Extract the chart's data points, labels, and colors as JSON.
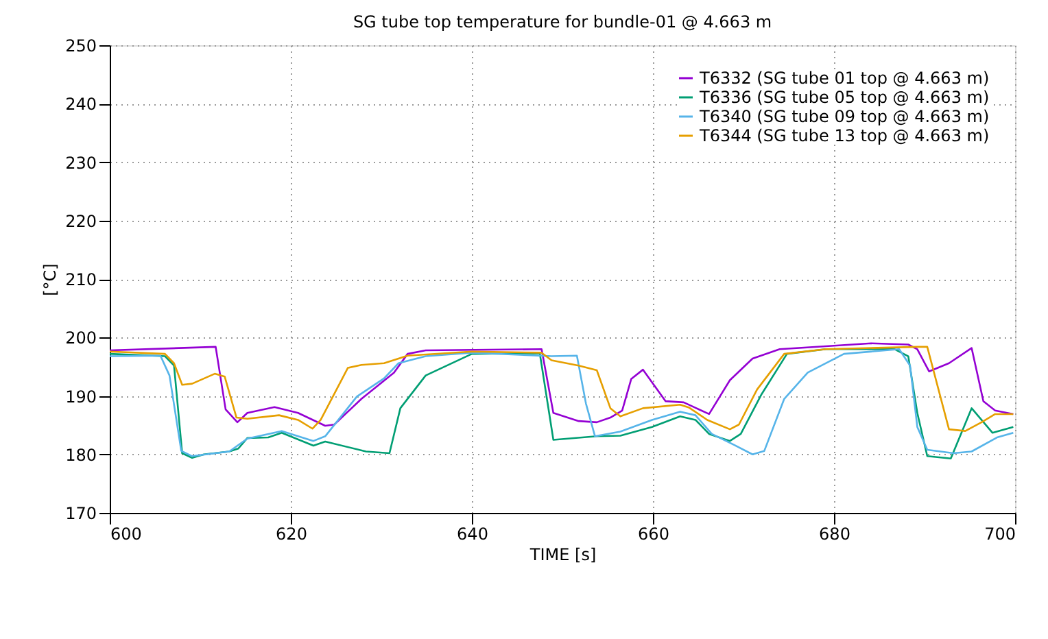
{
  "chart_data": {
    "type": "line",
    "title": "SG tube top temperature for bundle-01 @ 4.663 m",
    "xlabel": "TIME [s]",
    "ylabel": "[°C]",
    "xlim": [
      600,
      700
    ],
    "xticks": [
      600,
      620,
      640,
      660,
      680,
      700
    ],
    "ylim": [
      170,
      250
    ],
    "yticks": [
      170,
      180,
      190,
      200,
      210,
      220,
      230,
      240,
      250
    ],
    "grid": true,
    "legend": "top right",
    "line_style": "solid",
    "series": [
      {
        "name": "T6332 (SG tube 01 top @ 4.663 m)",
        "color": "#9400d3",
        "x": [
          600,
          611.7,
          612.8,
          614.1,
          615.2,
          618.2,
          620.8,
          623.8,
          624.8,
          627.8,
          631.4,
          632.9,
          634.9,
          647.7,
          649.0,
          651.8,
          653.8,
          655.3,
          656.6,
          657.6,
          658.9,
          661.4,
          663.4,
          666.2,
          668.5,
          671.0,
          674.0,
          679.1,
          684.1,
          688.2,
          689.2,
          690.5,
          692.7,
          695.2,
          696.5,
          697.8,
          699.8
        ],
        "values": [
          197.8,
          198.4,
          187.7,
          185.5,
          187.1,
          188.1,
          187.1,
          184.9,
          185.1,
          189.5,
          194,
          197.2,
          197.8,
          198,
          187.1,
          185.7,
          185.5,
          186.3,
          187.5,
          192.9,
          194.5,
          189.1,
          188.9,
          186.9,
          192.7,
          196.4,
          198,
          198.5,
          199,
          198.8,
          198,
          194.2,
          195.6,
          198.2,
          189.1,
          187.5,
          186.9
        ]
      },
      {
        "name": "T6336 (SG tube 05 top @ 4.663 m)",
        "color": "#009e73",
        "x": [
          600,
          606.1,
          607.1,
          608.0,
          609.1,
          610.4,
          613.2,
          614.2,
          615.2,
          617.5,
          619.0,
          622.5,
          623.8,
          628.3,
          630.9,
          632.1,
          634.9,
          640.0,
          647.5,
          649.0,
          653.8,
          656.4,
          659.9,
          663.0,
          664.7,
          666.2,
          668.5,
          669.7,
          672.0,
          674.8,
          679.1,
          686.7,
          688.2,
          689.2,
          690.3,
          692.9,
          695.2,
          697.5,
          699.8
        ],
        "values": [
          197.2,
          196.8,
          195.2,
          180.2,
          179.4,
          180,
          180.5,
          181,
          182.8,
          182.9,
          183.7,
          181.5,
          182.2,
          180.5,
          180.2,
          187.9,
          193.5,
          197.2,
          197.3,
          182.5,
          183.1,
          183.2,
          184.7,
          186.5,
          185.9,
          183.5,
          182.3,
          183.5,
          190.3,
          197.2,
          198,
          198,
          196.8,
          187.1,
          179.7,
          179.3,
          187.9,
          183.7,
          184.7
        ]
      },
      {
        "name": "T6340 (SG tube 09 top @ 4.663 m)",
        "color": "#56b4e9",
        "x": [
          600,
          605.6,
          606.6,
          607.9,
          609.1,
          613.2,
          615.2,
          619.0,
          622.5,
          623.8,
          627.3,
          630.3,
          631.9,
          634.9,
          640.0,
          648.8,
          651.6,
          652.6,
          653.6,
          656.4,
          659.9,
          663.0,
          664.7,
          666.5,
          669.0,
          671.0,
          672.3,
          674.5,
          677.1,
          681.1,
          687.2,
          688.4,
          689.2,
          690.3,
          693.2,
          695.2,
          698.0,
          699.8
        ],
        "values": [
          196.8,
          196.9,
          193.5,
          180.6,
          179.7,
          180.5,
          182.7,
          184,
          182.3,
          183.1,
          189.9,
          193,
          195.6,
          196.8,
          197.4,
          196.8,
          196.9,
          188.7,
          183.1,
          183.9,
          185.9,
          187.3,
          186.7,
          183.5,
          181.6,
          180,
          180.6,
          189.5,
          194,
          197.2,
          198,
          195.2,
          184.7,
          180.8,
          180.2,
          180.5,
          182.9,
          183.7
        ]
      },
      {
        "name": "T6344 (SG tube 13 top @ 4.663 m)",
        "color": "#e69f00",
        "x": [
          600,
          606.1,
          607.1,
          608.0,
          609.1,
          611.6,
          612.7,
          614.0,
          615.2,
          618.7,
          620.8,
          622.4,
          623.3,
          626.3,
          627.8,
          630.3,
          632.9,
          640.0,
          647.7,
          648.8,
          651.8,
          653.8,
          655.3,
          656.4,
          658.9,
          663.0,
          664.0,
          666.0,
          668.5,
          669.5,
          671.5,
          674.5,
          679.1,
          689.2,
          690.3,
          692.7,
          694.5,
          696.3,
          697.8,
          699.8
        ],
        "values": [
          197.6,
          197.2,
          195.6,
          191.9,
          192.1,
          193.8,
          193.3,
          186.3,
          186.1,
          186.7,
          185.9,
          184.4,
          185.9,
          194.8,
          195.3,
          195.6,
          196.9,
          197.6,
          197.4,
          196.1,
          195.2,
          194.4,
          187.9,
          186.5,
          187.9,
          188.5,
          188,
          185.9,
          184.3,
          185.1,
          191.1,
          197.2,
          198,
          198.4,
          198.4,
          184.3,
          184,
          185.5,
          186.9,
          186.9
        ]
      }
    ]
  }
}
